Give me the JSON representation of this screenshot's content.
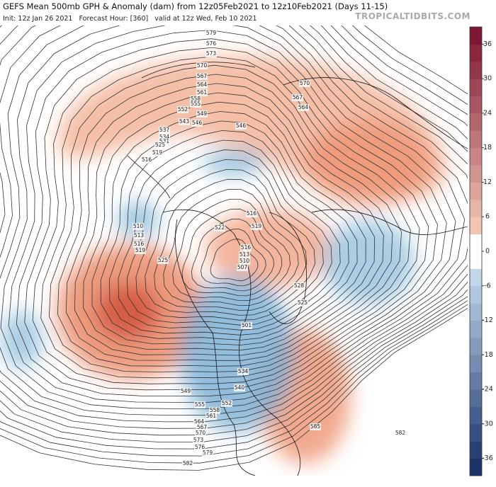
{
  "header": {
    "title": "GEFS Mean 500mb GPH & Anomaly (dam) from 12z05Feb2021 to 12z10Feb2021 (Days 11-15)",
    "subtitle": "Init: 12z Jan 26 2021   Forecast Hour: [360]   valid at 12z Wed, Feb 10 2021",
    "watermark": "TROPICALTIDBITS.COM"
  },
  "colorbar": {
    "lim": [
      -39,
      39
    ],
    "ticks": [
      36,
      30,
      24,
      18,
      12,
      6,
      0,
      -6,
      -12,
      -18,
      -24,
      -30,
      -36
    ]
  },
  "contour_labels": [
    579,
    576,
    573,
    570,
    567,
    564,
    561,
    558,
    555,
    552,
    549,
    546,
    543,
    537,
    534,
    531,
    525,
    519,
    516,
    570,
    567,
    564,
    546,
    510,
    513,
    516,
    519,
    525,
    522,
    519,
    516,
    516,
    513,
    510,
    507,
    528,
    525,
    501,
    534,
    540,
    549,
    552,
    555,
    558,
    561,
    564,
    567,
    570,
    573,
    576,
    579,
    582,
    585,
    582
  ]
}
